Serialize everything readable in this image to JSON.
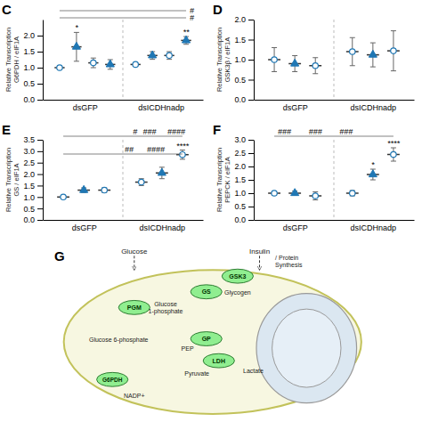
{
  "chart_data": [
    {
      "type": "scatter",
      "title": "C",
      "ylabel": "Relative Transcription\nG6PDH / eIF1A",
      "categories": [
        "dsGFP",
        "dsICDHnadp"
      ],
      "series": [
        {
          "values": [
            1.0,
            1.1
          ],
          "errors": [
            0.05,
            0.05
          ],
          "marker": "circle-open"
        },
        {
          "values": [
            1.65,
            1.38
          ],
          "errors": [
            0.45,
            0.12
          ],
          "marker": "triangle"
        },
        {
          "values": [
            1.15,
            1.38
          ],
          "errors": [
            0.15,
            0.12
          ],
          "marker": "circle-open"
        },
        {
          "values": [
            1.1,
            1.85
          ],
          "errors": [
            0.15,
            0.12
          ],
          "marker": "triangle"
        }
      ],
      "ylim": [
        0.0,
        2.5
      ],
      "yticks": [
        {
          "value": 0.0,
          "label": "0.0"
        },
        0.5,
        {
          "value": 1.0,
          "label": "1.0"
        },
        1.5,
        {
          "value": 2.0,
          "label": "2.0"
        }
      ],
      "annotations": [
        "#",
        "#",
        "**",
        "*"
      ]
    },
    {
      "type": "scatter",
      "title": "D",
      "ylabel": "Relative Transcription\nGSK3β / eIF1A",
      "categories": [
        "dsGFP",
        "dsICDHnadp"
      ],
      "series": [
        {
          "values": [
            1.0,
            1.2
          ],
          "errors": [
            0.3,
            0.35
          ],
          "marker": "circle-open"
        },
        {
          "values": [
            0.9,
            1.12
          ],
          "errors": [
            0.2,
            0.3
          ],
          "marker": "triangle"
        },
        {
          "values": [
            0.85,
            1.22
          ],
          "errors": [
            0.2,
            0.5
          ],
          "marker": "circle-open"
        }
      ],
      "ylim": [
        0.0,
        2.0
      ],
      "yticks": [
        {
          "value": 0.0,
          "label": "0.0"
        },
        0.5,
        {
          "value": 1.0,
          "label": "1.0"
        },
        1.5,
        {
          "value": 2.0,
          "label": "2.0"
        }
      ]
    },
    {
      "type": "scatter",
      "title": "E",
      "ylabel": "Relative Transcription\nGS / eIF1A",
      "categories": [
        "dsGFP",
        "dsICDHnadp"
      ],
      "series": [
        {
          "values": [
            1.0,
            1.65
          ],
          "errors": [
            0.07,
            0.15
          ],
          "marker": "circle-open"
        },
        {
          "values": [
            1.3,
            2.05
          ],
          "errors": [
            0.1,
            0.25
          ],
          "marker": "triangle"
        },
        {
          "values": [
            1.3,
            2.85
          ],
          "errors": [
            0.1,
            0.2
          ],
          "marker": "circle-open"
        }
      ],
      "ylim": [
        0.0,
        3.5
      ],
      "yticks": [
        {
          "value": 0.0,
          "label": "0.0"
        },
        0.5,
        {
          "value": 1.0,
          "label": "1.0"
        },
        1.5,
        {
          "value": 2.0,
          "label": "2.0"
        },
        2.5,
        {
          "value": 3.0,
          "label": "3.0"
        },
        3.5
      ],
      "annotations": [
        "#",
        "###",
        "####",
        "##",
        "####",
        "****"
      ]
    },
    {
      "type": "scatter",
      "title": "F",
      "ylabel": "Relative Transcription\nPEPCK / eIF1A",
      "categories": [
        "dsGFP",
        "dsICDHnadp"
      ],
      "series": [
        {
          "values": [
            1.0,
            1.0
          ],
          "errors": [
            0.08,
            0.1
          ],
          "marker": "circle-open"
        },
        {
          "values": [
            1.0,
            1.7
          ],
          "errors": [
            0.08,
            0.2
          ],
          "marker": "triangle"
        },
        {
          "values": [
            0.9,
            2.45
          ],
          "errors": [
            0.15,
            0.25
          ],
          "marker": "circle-open"
        }
      ],
      "ylim": [
        0.0,
        3.0
      ],
      "yticks": [
        {
          "value": 0.0,
          "label": "0.0"
        },
        0.5,
        {
          "value": 1.0,
          "label": "1.0"
        },
        1.5,
        {
          "value": 2.0,
          "label": "2.0"
        },
        2.5,
        {
          "value": 3.0,
          "label": "3.0"
        }
      ],
      "annotations": [
        "###",
        "###",
        "###",
        "****",
        "*"
      ]
    },
    {
      "type": "diagram",
      "title": "G",
      "nodes": [
        "PGM",
        "GS",
        "GSK3",
        "GP",
        "LDH",
        "G6PDH"
      ],
      "color": "#90ee90",
      "annotations": [
        "Glucose\n1-phosphate",
        "Glycogen",
        "Glucose 6-phosphate",
        "PEP",
        "Pyruvate",
        "Lactate",
        "NADP+",
        "/ Protein\nSynthesis",
        "Glucose",
        "Insulin"
      ]
    }
  ]
}
